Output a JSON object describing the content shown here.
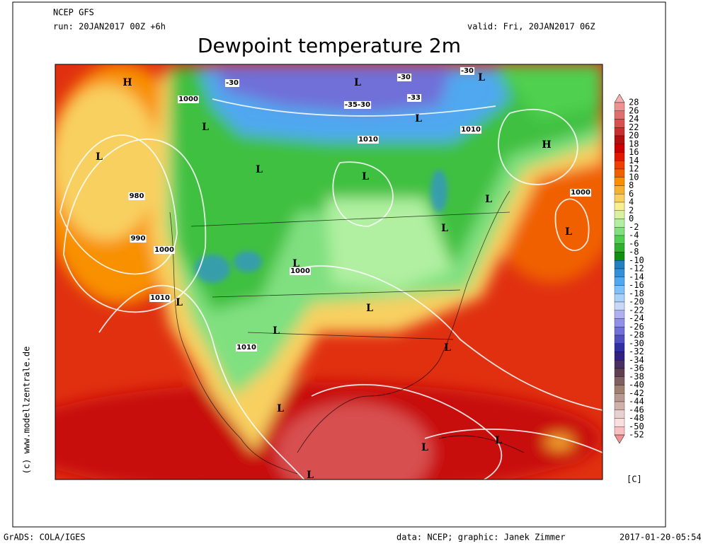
{
  "header": {
    "model": "NCEP GFS",
    "run": "run: 20JAN2017 00Z +6h",
    "valid": "valid: Fri, 20JAN2017 06Z",
    "title": "Dewpoint temperature 2m"
  },
  "colorbar": {
    "unit": "[C]",
    "levels": [
      28,
      26,
      24,
      22,
      20,
      18,
      16,
      14,
      12,
      10,
      8,
      6,
      4,
      2,
      0,
      -2,
      -4,
      -6,
      -8,
      -10,
      -12,
      -14,
      -16,
      -18,
      -20,
      -22,
      -24,
      -26,
      -28,
      -30,
      -32,
      -34,
      -36,
      -38,
      -40,
      -42,
      -44,
      -46,
      -48,
      -50,
      -52
    ],
    "colors": [
      "#f4b0b0",
      "#f09090",
      "#e07070",
      "#d85050",
      "#c83030",
      "#b01010",
      "#c80000",
      "#e01800",
      "#f04000",
      "#f06000",
      "#f89000",
      "#f8b030",
      "#f8d060",
      "#f8f090",
      "#d8f0a0",
      "#b0f0a0",
      "#80e080",
      "#50d050",
      "#30b030",
      "#109010",
      "#2080c0",
      "#3090d8",
      "#50a8f0",
      "#80c0f8",
      "#a8d0f8",
      "#c8d8f8",
      "#b0b0f0",
      "#9090e8",
      "#7070d8",
      "#5050c0",
      "#3030a0",
      "#302080",
      "#483060",
      "#604050",
      "#806060",
      "#a08070",
      "#b89890",
      "#d0b0a8",
      "#e8d0d0",
      "#f8e0e0",
      "#f8c0c0",
      "#f09090"
    ]
  },
  "map": {
    "pressure_labels": [
      "1000",
      "1010",
      "1010",
      "980",
      "990",
      "1000",
      "1000",
      "1010",
      "1010",
      "1000"
    ],
    "dewpoint_labels": [
      "-30",
      "-30",
      "-35-30",
      "-33",
      "-30"
    ],
    "systems": [
      "H",
      "L",
      "L",
      "L",
      "L",
      "L",
      "L",
      "L",
      "H",
      "L",
      "L",
      "L",
      "L",
      "L",
      "L",
      "L",
      "L",
      "L",
      "L",
      "L",
      "L"
    ]
  },
  "footer": {
    "software": "GrADS: COLA/IGES",
    "credit": "data: NCEP; graphic: Janek Zimmer",
    "timestamp": "2017-01-20-05:54",
    "copyright": "(c) www.modellzentrale.de"
  }
}
